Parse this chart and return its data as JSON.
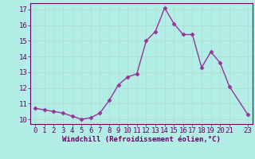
{
  "x": [
    0,
    1,
    2,
    3,
    4,
    5,
    6,
    7,
    8,
    9,
    10,
    11,
    12,
    13,
    14,
    15,
    16,
    17,
    18,
    19,
    20,
    21,
    23
  ],
  "y": [
    10.7,
    10.6,
    10.5,
    10.4,
    10.2,
    10.0,
    10.1,
    10.4,
    11.2,
    12.2,
    12.7,
    12.9,
    15.0,
    15.6,
    17.1,
    16.1,
    15.4,
    15.4,
    13.3,
    14.3,
    13.6,
    12.1,
    10.3
  ],
  "line_color": "#993399",
  "marker": "D",
  "markersize": 2.5,
  "linewidth": 1.0,
  "xlabel": "Windchill (Refroidissement éolien,°C)",
  "xlim": [
    -0.5,
    23.5
  ],
  "ylim": [
    9.7,
    17.4
  ],
  "yticks": [
    10,
    11,
    12,
    13,
    14,
    15,
    16,
    17
  ],
  "xticks": [
    0,
    1,
    2,
    3,
    4,
    5,
    6,
    7,
    8,
    9,
    10,
    11,
    12,
    13,
    14,
    15,
    16,
    17,
    18,
    19,
    20,
    21,
    23
  ],
  "bg_color": "#b2eee6",
  "grid_color": "#aaddcc",
  "tick_color": "#660066",
  "label_color": "#660066",
  "font_size": 6.5,
  "xlabel_fontsize": 6.5
}
